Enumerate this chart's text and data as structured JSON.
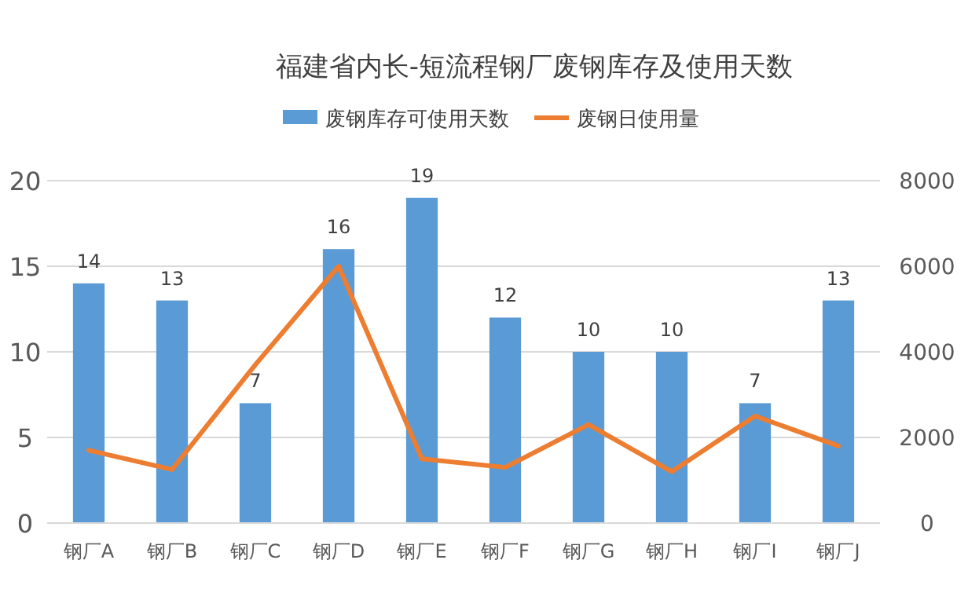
{
  "chart_data": {
    "type": "bar",
    "title": "福建省内长-短流程钢厂废钢库存及使用天数",
    "categories": [
      "钢厂A",
      "钢厂B",
      "钢厂C",
      "钢厂D",
      "钢厂E",
      "钢厂F",
      "钢厂G",
      "钢厂H",
      "钢厂I",
      "钢厂J"
    ],
    "series": [
      {
        "name": "废钢库存可使用天数",
        "color": "#5b9bd5",
        "data_labels": true,
        "values": [
          14,
          13,
          7,
          16,
          19,
          12,
          10,
          10,
          7,
          13
        ]
      },
      {
        "name": "废钢日使用量",
        "type": "line",
        "axis": "y2",
        "color": "#ed7d31",
        "marker": "none",
        "values": [
          1700,
          1250,
          3700,
          6000,
          1500,
          1300,
          2300,
          1200,
          2500,
          1800
        ]
      }
    ],
    "ylim": [
      0,
      20
    ],
    "yticks": [
      0,
      5,
      10,
      15,
      20
    ],
    "y2lim": [
      0,
      8000
    ],
    "y2ticks": [
      0,
      2000,
      4000,
      6000,
      8000
    ],
    "grid": "y",
    "legend": "top"
  }
}
